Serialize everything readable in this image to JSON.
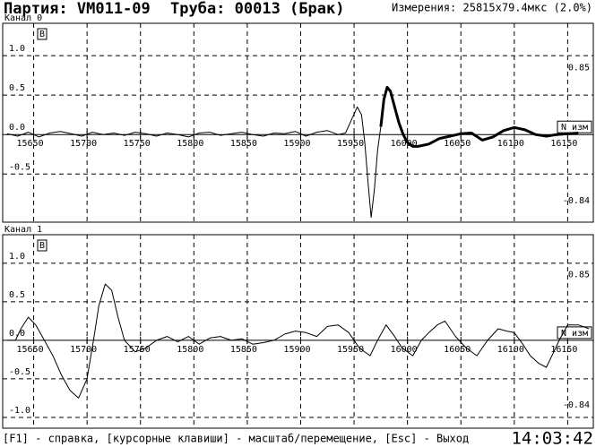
{
  "header": {
    "batch": "Партия: VM011-09",
    "pipe": "Труба: 00013 (Брак)",
    "measure": "Измерения: 25815x79.4мкс (2.0%)"
  },
  "footer": {
    "help": "[F1] - справка, [курсорные клавиши] - масштаб/перемещение, [Esc] - Выход",
    "time": "14:03:42"
  },
  "chart_data": [
    {
      "type": "line",
      "title": "Канал 0",
      "marker": "В",
      "unit_box": "N изм",
      "xlim": [
        15621,
        16174
      ],
      "ylim": [
        -1.11,
        1.41
      ],
      "xticks": [
        15650,
        15700,
        15750,
        15800,
        15850,
        15900,
        15950,
        16000,
        16050,
        16100,
        16150
      ],
      "yticks": [
        -0.5,
        {
          "value": 0,
          "label": "0.0"
        },
        0.5,
        {
          "value": 1,
          "label": "1.0"
        }
      ],
      "thresholds": [
        {
          "value": 0.85,
          "label": "0.85"
        },
        {
          "value": -0.84,
          "label": "-0.84"
        }
      ],
      "series": [
        {
          "color": "#000000",
          "width": 1,
          "x": [
            15625,
            15635,
            15645,
            15655,
            15665,
            15675,
            15685,
            15695,
            15705,
            15715,
            15725,
            15735,
            15745,
            15755,
            15765,
            15775,
            15785,
            15795,
            15805,
            15815,
            15825,
            15835,
            15845,
            15855,
            15865,
            15875,
            15885,
            15895,
            15905,
            15915,
            15925,
            15935,
            15942,
            15948,
            15953,
            15957,
            15960,
            15963,
            15966,
            15969,
            15972,
            15975
          ],
          "values": [
            0.01,
            -0.02,
            0.03,
            -0.03,
            0.02,
            0.04,
            0.01,
            -0.02,
            0.03,
            0.0,
            0.02,
            -0.01,
            0.03,
            0.01,
            -0.02,
            0.02,
            0.0,
            -0.03,
            0.02,
            0.03,
            -0.01,
            0.01,
            0.03,
            0.0,
            -0.02,
            0.02,
            0.01,
            0.04,
            -0.02,
            0.03,
            0.05,
            0.0,
            0.02,
            0.2,
            0.35,
            0.25,
            -0.1,
            -0.6,
            -1.05,
            -0.7,
            -0.2,
            0.1
          ]
        },
        {
          "color": "#000000",
          "width": 3,
          "x": [
            15975,
            15978,
            15981,
            15984,
            15988,
            15992,
            15996,
            16000,
            16005,
            16010,
            16020,
            16030,
            16040,
            16050,
            16060,
            16070,
            16080,
            16090,
            16100,
            16110,
            16120,
            16130,
            16140,
            16150,
            16160
          ],
          "values": [
            0.1,
            0.45,
            0.6,
            0.55,
            0.35,
            0.15,
            0.0,
            -0.1,
            -0.15,
            -0.15,
            -0.12,
            -0.05,
            -0.02,
            0.01,
            0.02,
            -0.07,
            -0.03,
            0.05,
            0.09,
            0.06,
            0.0,
            -0.02,
            0.0,
            0.01,
            0.02
          ]
        }
      ]
    },
    {
      "type": "line",
      "title": "Канал 1",
      "marker": "В",
      "unit_box": "N изм",
      "xlim": [
        15621,
        16174
      ],
      "ylim": [
        -1.14,
        1.37
      ],
      "xticks": [
        15650,
        15700,
        15750,
        15800,
        15850,
        15900,
        15950,
        16000,
        16050,
        16100,
        16150
      ],
      "yticks": [
        {
          "value": -1,
          "label": "-1.0"
        },
        -0.5,
        {
          "value": 0,
          "label": "0.0"
        },
        0.5,
        {
          "value": 1,
          "label": "1.0"
        }
      ],
      "thresholds": [
        {
          "value": 0.85,
          "label": "0.85"
        },
        {
          "value": -0.84,
          "label": "-0.84"
        }
      ],
      "series": [
        {
          "color": "#000000",
          "width": 1,
          "x": [
            15625,
            15633,
            15638,
            15645,
            15652,
            15660,
            15668,
            15676,
            15684,
            15692,
            15700,
            15706,
            15711,
            15717,
            15723,
            15729,
            15735,
            15745,
            15755,
            15765,
            15775,
            15785,
            15795,
            15805,
            15815,
            15825,
            15835,
            15845,
            15855,
            15865,
            15875,
            15885,
            15895,
            15905,
            15915,
            15925,
            15935,
            15945,
            15955,
            15965,
            15972,
            15980,
            15988,
            15995,
            16005,
            16013,
            16020,
            16028,
            16035,
            16045,
            16055,
            16065,
            16075,
            16085,
            16093,
            16100,
            16108,
            16115,
            16123,
            16130,
            16137,
            16142,
            16150,
            16160,
            16170
          ],
          "values": [
            0.0,
            0.0,
            0.15,
            0.3,
            0.2,
            0.0,
            -0.2,
            -0.45,
            -0.65,
            -0.75,
            -0.5,
            0.0,
            0.45,
            0.73,
            0.65,
            0.3,
            0.0,
            -0.15,
            -0.1,
            0.0,
            0.05,
            -0.02,
            0.05,
            -0.05,
            0.03,
            0.05,
            0.0,
            0.02,
            -0.05,
            -0.03,
            0.0,
            0.08,
            0.12,
            0.1,
            0.05,
            0.18,
            0.2,
            0.1,
            -0.1,
            -0.2,
            0.0,
            0.2,
            0.05,
            -0.1,
            -0.2,
            0.0,
            0.1,
            0.2,
            0.25,
            0.05,
            -0.1,
            -0.2,
            0.0,
            0.15,
            0.12,
            0.1,
            -0.05,
            -0.2,
            -0.3,
            -0.35,
            -0.15,
            0.0,
            0.2,
            0.2,
            0.15
          ]
        }
      ]
    }
  ]
}
